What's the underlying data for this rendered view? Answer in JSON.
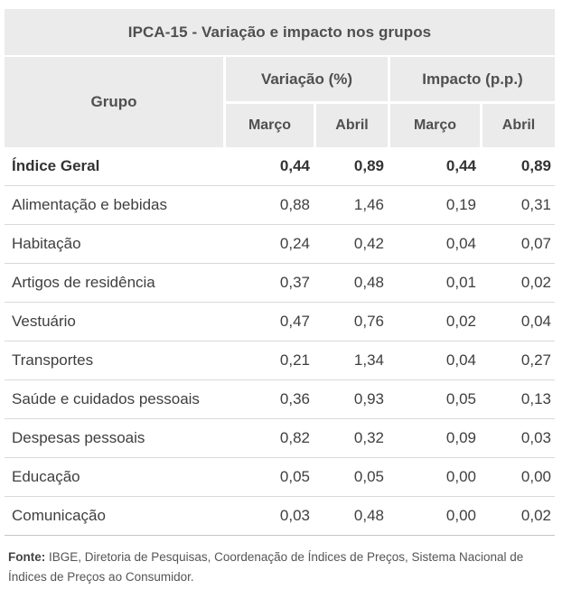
{
  "chart_data": {
    "type": "table",
    "title": "IPCA-15 - Variação e impacto nos grupos",
    "column_groups": [
      {
        "label": "Grupo",
        "span": 1
      },
      {
        "label": "Variação (%)",
        "span": 2
      },
      {
        "label": "Impacto (p.p.)",
        "span": 2
      }
    ],
    "subheaders": [
      "Março",
      "Abril",
      "Março",
      "Abril"
    ],
    "rows": [
      {
        "label": "Índice Geral",
        "bold": true,
        "values": [
          "0,44",
          "0,89",
          "0,44",
          "0,89"
        ]
      },
      {
        "label": "Alimentação e bebidas",
        "bold": false,
        "values": [
          "0,88",
          "1,46",
          "0,19",
          "0,31"
        ]
      },
      {
        "label": "Habitação",
        "bold": false,
        "values": [
          "0,24",
          "0,42",
          "0,04",
          "0,07"
        ]
      },
      {
        "label": "Artigos de residência",
        "bold": false,
        "values": [
          "0,37",
          "0,48",
          "0,01",
          "0,02"
        ]
      },
      {
        "label": "Vestuário",
        "bold": false,
        "values": [
          "0,47",
          "0,76",
          "0,02",
          "0,04"
        ]
      },
      {
        "label": "Transportes",
        "bold": false,
        "values": [
          "0,21",
          "1,34",
          "0,04",
          "0,27"
        ]
      },
      {
        "label": "Saúde e cuidados pessoais",
        "bold": false,
        "values": [
          "0,36",
          "0,93",
          "0,05",
          "0,13"
        ]
      },
      {
        "label": "Despesas pessoais",
        "bold": false,
        "values": [
          "0,82",
          "0,32",
          "0,09",
          "0,03"
        ]
      },
      {
        "label": "Educação",
        "bold": false,
        "values": [
          "0,05",
          "0,05",
          "0,00",
          "0,00"
        ]
      },
      {
        "label": "Comunicação",
        "bold": false,
        "values": [
          "0,03",
          "0,48",
          "0,00",
          "0,02"
        ]
      }
    ]
  },
  "footer": {
    "prefix": "Fonte:",
    "text": " IBGE, Diretoria de Pesquisas, Coordenação de Índices de Preços, Sistema Nacional de Índices de Preços ao Consumidor."
  },
  "colors": {
    "header_bg": "#ebebeb",
    "header_text": "#4f4f4f",
    "body_text": "#3f3f3f",
    "row_border": "#d9d9d9"
  }
}
